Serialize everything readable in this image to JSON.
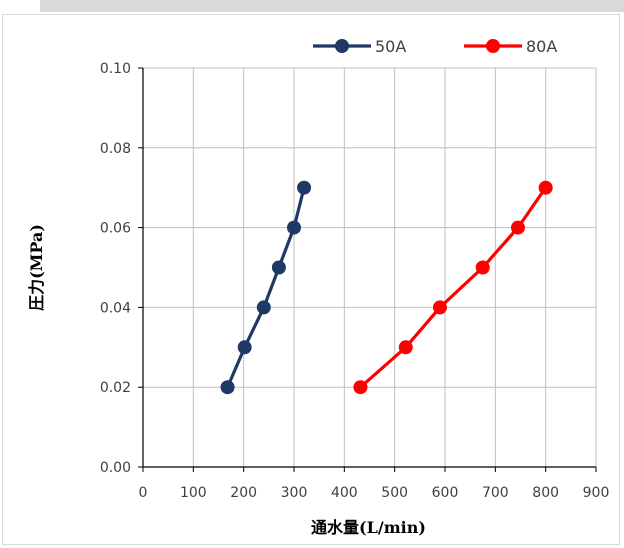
{
  "chart_data": {
    "type": "line",
    "xlabel": "通水量(L/min)",
    "ylabel": "圧力(MPa)",
    "xlim": [
      0,
      900
    ],
    "ylim": [
      0,
      0.1
    ],
    "x_ticks": [
      "0",
      "100",
      "200",
      "300",
      "400",
      "500",
      "600",
      "700",
      "800",
      "900"
    ],
    "y_ticks": [
      "0.00",
      "0.02",
      "0.04",
      "0.06",
      "0.08",
      "0.10"
    ],
    "grid": true,
    "legend_position": "top",
    "series": [
      {
        "name": "50A",
        "color": "#1f3864",
        "points": [
          [
            168,
            0.02
          ],
          [
            202,
            0.03
          ],
          [
            240,
            0.04
          ],
          [
            270,
            0.05
          ],
          [
            300,
            0.06
          ],
          [
            320,
            0.07
          ]
        ]
      },
      {
        "name": "80A",
        "color": "#ff0000",
        "points": [
          [
            432,
            0.02
          ],
          [
            522,
            0.03
          ],
          [
            590,
            0.04
          ],
          [
            675,
            0.05
          ],
          [
            745,
            0.06
          ],
          [
            800,
            0.07
          ]
        ]
      }
    ]
  }
}
